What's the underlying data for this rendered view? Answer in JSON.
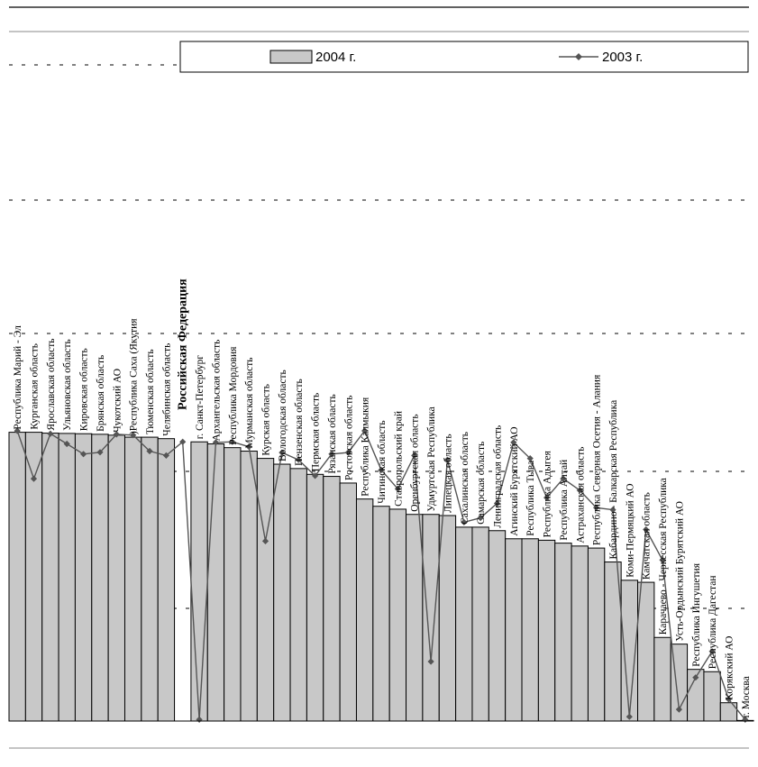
{
  "chart_data": {
    "type": "bar",
    "title": "",
    "xlabel": "",
    "ylabel": "",
    "ylim": [
      0,
      100
    ],
    "grid": true,
    "legend_placement": "top",
    "categories": [
      "Республика Марий - Эл",
      "Курганская область",
      "Ярославская область",
      "Ульяновская область",
      "Кировская область",
      "Брянская область",
      "Чукотский АО",
      ")Республика Саха (Якутия",
      "Тюменская область",
      "Челябинская область",
      "Российская Федерация",
      "г. Санкт-Петербург",
      "Архангельская область",
      "Республика Мордовия",
      "Мурманская область",
      "Курская область",
      "Вологодская область",
      "Пензенская область",
      "Пермская область",
      "Рязанская область",
      "Ростовская область",
      "Республика Калмыкия",
      "Читинская область",
      "Ставропольский край",
      "Оренбургская область",
      "Удмуртская Республика",
      "Липецкая область",
      "Сахалинская область",
      "Самарская область",
      "Ленинградская область",
      "Агинский Бурятский АО",
      "Республика Тыва",
      "Республика Адыгея",
      "Республика Алтай",
      "Астраханская область",
      "Республика Северная Осетия - Алания",
      "Кабардино - Балкарская Республика",
      "Коми-Пермяцкий АО",
      "Камчатская область",
      "Карачаево - Черкесская Республика",
      "Усть-Ордынский Бурятский АО",
      "Республика Ингушетия",
      "Республика Дагестан",
      "Корякский АО",
      "г. Москва"
    ],
    "bold_category": "Российская Федерация",
    "series": [
      {
        "name": "2004 г.",
        "kind": "bar",
        "color": "#c8c8c8",
        "values": [
          99.5,
          99.5,
          99.2,
          99.1,
          99.0,
          98.8,
          98.5,
          97.8,
          97.8,
          97.3,
          0,
          96.2,
          95.5,
          94.2,
          93.0,
          90.5,
          88.5,
          87.0,
          85.0,
          84.3,
          82.0,
          76.5,
          74.0,
          73.0,
          71.2,
          71.2,
          70.8,
          66.8,
          66.8,
          65.6,
          62.8,
          62.8,
          62.3,
          61.3,
          60.3,
          59.6,
          54.8,
          48.5,
          47.8,
          28.8,
          26.5,
          17.8,
          17.0,
          6.3,
          0.2
        ]
      },
      {
        "name": "2003 г.",
        "kind": "line",
        "color": "#555555",
        "values": [
          100.0,
          83.5,
          99.0,
          95.5,
          92.0,
          92.6,
          98.8,
          98.5,
          93.0,
          91.5,
          96.2,
          0.5,
          96.0,
          96.2,
          94.5,
          62.0,
          92.5,
          90.0,
          84.5,
          92.0,
          92.5,
          100.0,
          86.5,
          80.0,
          91.5,
          20.5,
          90.0,
          68.5,
          70.0,
          75.0,
          96.0,
          90.5,
          77.0,
          83.5,
          79.5,
          73.5,
          72.8,
          1.5,
          66.0,
          55.5,
          4.0,
          15.0,
          24.0,
          7.5,
          0.5
        ]
      }
    ]
  }
}
